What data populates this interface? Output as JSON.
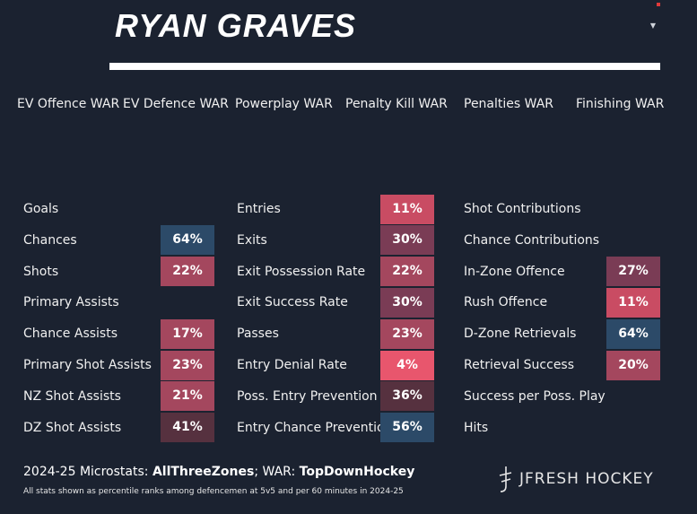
{
  "header": {
    "player_name": "RYAN GRAVES",
    "menu_icon": "chevron-down-icon",
    "accent_color": "#e03a3a"
  },
  "war_metrics": [
    "EV Offence WAR",
    "EV Defence WAR",
    "Powerplay WAR",
    "Penalty Kill WAR",
    "Penalties WAR",
    "Finishing WAR"
  ],
  "columns": [
    {
      "stats": [
        {
          "label": "Goals",
          "value": ""
        },
        {
          "label": "Chances",
          "value": "64%"
        },
        {
          "label": "Shots",
          "value": "22%"
        },
        {
          "label": "Primary Assists",
          "value": ""
        },
        {
          "label": "Chance Assists",
          "value": "17%"
        },
        {
          "label": "Primary Shot Assists",
          "value": "23%"
        },
        {
          "label": "NZ Shot Assists",
          "value": "21%"
        },
        {
          "label": "DZ Shot Assists",
          "value": "41%"
        }
      ]
    },
    {
      "stats": [
        {
          "label": "Entries",
          "value": "11%"
        },
        {
          "label": "Exits",
          "value": "30%"
        },
        {
          "label": "Exit Possession Rate",
          "value": "22%"
        },
        {
          "label": "Exit Success Rate",
          "value": "30%"
        },
        {
          "label": "Passes",
          "value": "23%"
        },
        {
          "label": "Entry Denial Rate",
          "value": "4%"
        },
        {
          "label": "Poss. Entry Prevention",
          "value": "36%"
        },
        {
          "label": "Entry Chance Prevention",
          "value": "56%"
        }
      ]
    },
    {
      "stats": [
        {
          "label": "Shot Contributions",
          "value": ""
        },
        {
          "label": "Chance Contributions",
          "value": ""
        },
        {
          "label": "In-Zone Offence",
          "value": "27%"
        },
        {
          "label": "Rush Offence",
          "value": "11%"
        },
        {
          "label": "D-Zone Retrievals",
          "value": "64%"
        },
        {
          "label": "Retrieval Success",
          "value": "20%"
        },
        {
          "label": "Success per Poss. Play",
          "value": ""
        },
        {
          "label": "Hits",
          "value": ""
        }
      ]
    }
  ],
  "palette": {
    "very_low": "#e8566d",
    "low": "#c94c63",
    "below_avg": "#a4475e",
    "mid_low": "#7a3c55",
    "mid": "#56313f",
    "above_avg": "#2c4a68"
  },
  "footer": {
    "season_prefix": "2024-25 Microstats: ",
    "microstats_source": "AllThreeZones",
    "war_prefix": "; WAR: ",
    "war_source": "TopDownHockey",
    "note": "All stats shown as percentile ranks among defencemen at 5v5 and per 60 minutes in 2024-25",
    "brand": "JFRESH HOCKEY"
  }
}
